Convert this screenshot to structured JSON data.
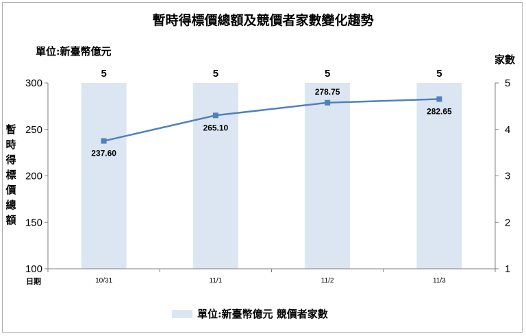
{
  "chart_data": {
    "type": "bar+line",
    "title": "暫時得標價總額及競價者家數變化趨勢",
    "unit_label": "單位:新臺幣億元",
    "categories": [
      "10/31",
      "11/1",
      "11/2",
      "11/3"
    ],
    "xlabel": "日期",
    "ylabel_left": "暫時得標價總額",
    "ylabel_right": "家數",
    "ylim_left": [
      100,
      300
    ],
    "yticks_left": [
      100,
      150,
      200,
      250,
      300
    ],
    "ylim_right": [
      1,
      5
    ],
    "yticks_right": [
      1,
      2,
      3,
      4,
      5
    ],
    "series": [
      {
        "name": "單位:新臺幣億元",
        "type": "line",
        "axis": "left",
        "values": [
          237.6,
          265.1,
          278.75,
          282.65
        ],
        "labels": [
          "237.60",
          "265.10",
          "278.75",
          "282.65"
        ],
        "color": "#4F81BD"
      },
      {
        "name": "競價者家數",
        "type": "bar",
        "axis": "right",
        "values": [
          5,
          5,
          5,
          5
        ],
        "labels": [
          "5",
          "5",
          "5",
          "5"
        ],
        "color": "#DCE6F2"
      }
    ],
    "legend": {
      "position": "bottom",
      "text": "單位:新臺幣億元 競價者家數"
    },
    "grid": false
  }
}
